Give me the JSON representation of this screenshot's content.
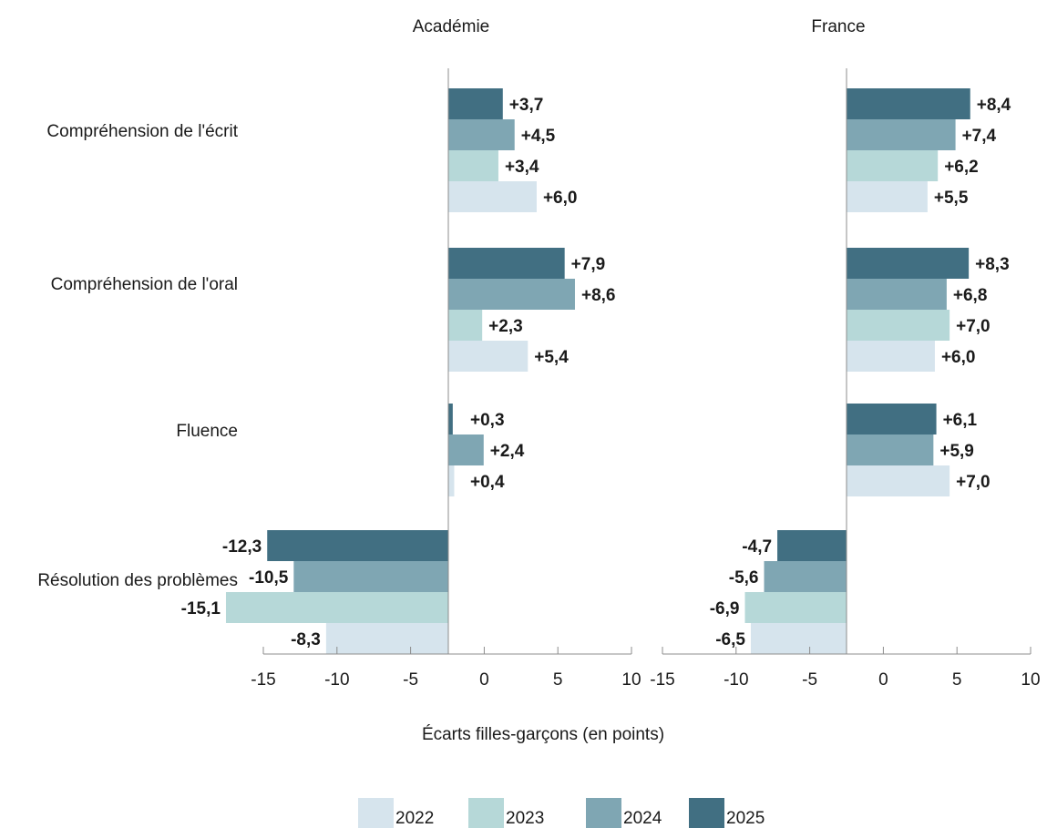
{
  "chart_data": {
    "type": "bar",
    "orientation": "horizontal",
    "xlabel": "Écarts filles-garçons (en points)",
    "xlim": [
      -15,
      10
    ],
    "xticks": [
      "-15",
      "-10",
      "-5",
      "0",
      "5",
      "10"
    ],
    "legend_position": "bottom",
    "categories": [
      "Compréhension de l'écrit",
      "Compréhension de l'oral",
      "Fluence",
      "Résolution des problèmes"
    ],
    "series": [
      {
        "name": "2025",
        "color": "#416f82"
      },
      {
        "name": "2024",
        "color": "#7fa6b3"
      },
      {
        "name": "2023",
        "color": "#b6d8d8"
      },
      {
        "name": "2022",
        "color": "#d6e4ed"
      }
    ],
    "legend_order": [
      "2022",
      "2023",
      "2024",
      "2025"
    ],
    "panels": [
      {
        "title": "Académie",
        "values": {
          "2025": [
            3.7,
            7.9,
            0.3,
            -12.3
          ],
          "2024": [
            4.5,
            8.6,
            2.4,
            -10.5
          ],
          "2023": [
            3.4,
            2.3,
            null,
            -15.1
          ],
          "2022": [
            6.0,
            5.4,
            0.4,
            -8.3
          ]
        },
        "labels": {
          "2025": [
            "+3,7",
            "+7,9",
            "+0,3",
            "-12,3"
          ],
          "2024": [
            "+4,5",
            "+8,6",
            "+2,4",
            "-10,5"
          ],
          "2023": [
            "+3,4",
            "+2,3",
            null,
            "-15,1"
          ],
          "2022": [
            "+6,0",
            "+5,4",
            "+0,4",
            "-8,3"
          ]
        }
      },
      {
        "title": "France",
        "values": {
          "2025": [
            8.4,
            8.3,
            6.1,
            -4.7
          ],
          "2024": [
            7.4,
            6.8,
            5.9,
            -5.6
          ],
          "2023": [
            6.2,
            7.0,
            null,
            -6.9
          ],
          "2022": [
            5.5,
            6.0,
            7.0,
            -6.5
          ]
        },
        "labels": {
          "2025": [
            "+8,4",
            "+8,3",
            "+6,1",
            "-4,7"
          ],
          "2024": [
            "+7,4",
            "+6,8",
            "+5,9",
            "-5,6"
          ],
          "2023": [
            "+6,2",
            "+7,0",
            null,
            "-6,9"
          ],
          "2022": [
            "+5,5",
            "+6,0",
            "+7,0",
            "-6,5"
          ]
        }
      }
    ]
  }
}
